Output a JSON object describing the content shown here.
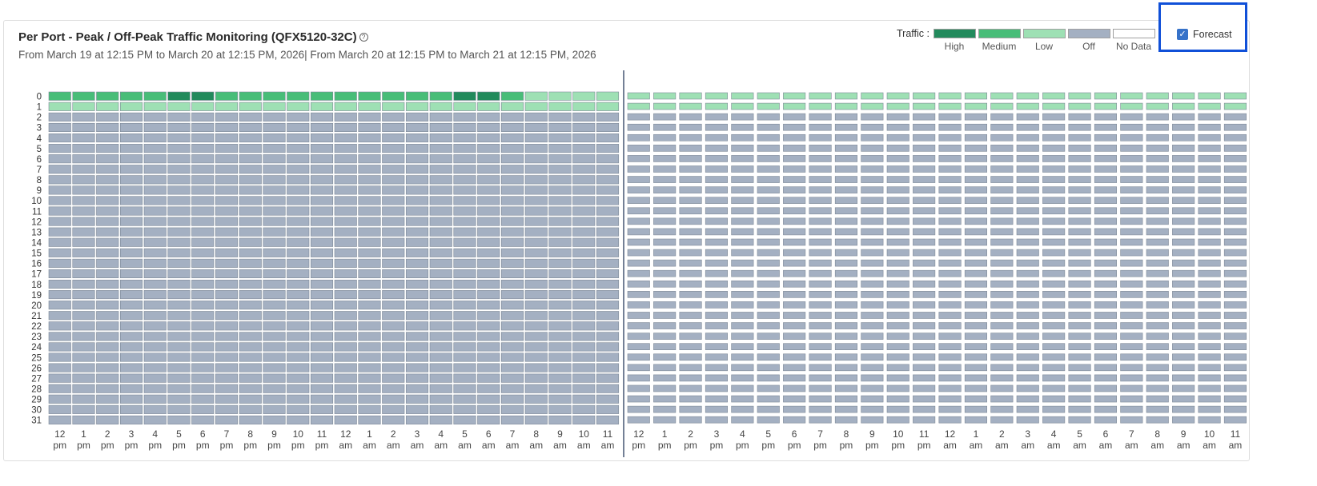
{
  "header": {
    "title": "Per Port - Peak / Off-Peak Traffic Monitoring (QFX5120-32C)",
    "help_glyph": "?",
    "subtitle": "From March 19 at 12:15 PM to March 20 at 12:15 PM, 2026| From March 20 at 12:15 PM to March 21 at 12:15 PM, 2026"
  },
  "legend": {
    "label": "Traffic :",
    "items": [
      {
        "name": "High",
        "color": "#228a5c"
      },
      {
        "name": "Medium",
        "color": "#48bd78"
      },
      {
        "name": "Low",
        "color": "#9ee0b4"
      },
      {
        "name": "Off",
        "color": "#a4b0c2"
      },
      {
        "name": "No Data",
        "color": "#ffffff"
      }
    ]
  },
  "forecast": {
    "label": "Forecast",
    "checked": true
  },
  "chart_data": {
    "type": "heatmap",
    "rows": [
      "0",
      "1",
      "2",
      "3",
      "4",
      "5",
      "6",
      "7",
      "8",
      "9",
      "10",
      "11",
      "12",
      "13",
      "14",
      "15",
      "16",
      "17",
      "18",
      "19",
      "20",
      "21",
      "22",
      "23",
      "24",
      "25",
      "26",
      "27",
      "28",
      "29",
      "30",
      "31"
    ],
    "x_ticks": [
      [
        "12",
        "pm"
      ],
      [
        "1",
        "pm"
      ],
      [
        "2",
        "pm"
      ],
      [
        "3",
        "pm"
      ],
      [
        "4",
        "pm"
      ],
      [
        "5",
        "pm"
      ],
      [
        "6",
        "pm"
      ],
      [
        "7",
        "pm"
      ],
      [
        "8",
        "pm"
      ],
      [
        "9",
        "pm"
      ],
      [
        "10",
        "pm"
      ],
      [
        "11",
        "pm"
      ],
      [
        "12",
        "am"
      ],
      [
        "1",
        "am"
      ],
      [
        "2",
        "am"
      ],
      [
        "3",
        "am"
      ],
      [
        "4",
        "am"
      ],
      [
        "5",
        "am"
      ],
      [
        "6",
        "am"
      ],
      [
        "7",
        "am"
      ],
      [
        "8",
        "am"
      ],
      [
        "9",
        "am"
      ],
      [
        "10",
        "am"
      ],
      [
        "11",
        "am"
      ]
    ],
    "historical": {
      "row_0": [
        "Medium",
        "Medium",
        "Medium",
        "Medium",
        "Medium",
        "High",
        "High",
        "Medium",
        "Medium",
        "Medium",
        "Medium",
        "Medium",
        "Medium",
        "Medium",
        "Medium",
        "Medium",
        "Medium",
        "High",
        "High",
        "Medium",
        "Low",
        "Low",
        "Low",
        "Low"
      ],
      "row_1": [
        "Low",
        "Low",
        "Low",
        "Low",
        "Low",
        "Low",
        "Low",
        "Low",
        "Low",
        "Low",
        "Low",
        "Low",
        "Low",
        "Low",
        "Low",
        "Low",
        "Low",
        "Low",
        "Low",
        "Low",
        "Low",
        "Low",
        "Low",
        "Low"
      ],
      "other_rows": "Off"
    },
    "forecast": {
      "row_0": "Low",
      "row_1": "Low",
      "other_rows": "Off"
    }
  }
}
